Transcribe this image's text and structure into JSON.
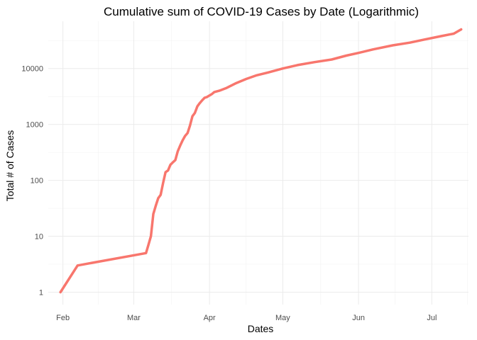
{
  "chart_data": {
    "type": "line",
    "title": "Cumulative sum of COVID-19 Cases by Date (Logarithmic)",
    "xlabel": "Dates",
    "ylabel": "Total # of Cases",
    "y_scale": "log10",
    "ylim": [
      1,
      70000
    ],
    "xlim": [
      "2020-01-26",
      "2020-07-16"
    ],
    "x_ticks": [
      {
        "date": "2020-02-01",
        "label": "Feb"
      },
      {
        "date": "2020-03-01",
        "label": "Mar"
      },
      {
        "date": "2020-04-01",
        "label": "Apr"
      },
      {
        "date": "2020-05-01",
        "label": "May"
      },
      {
        "date": "2020-06-01",
        "label": "Jun"
      },
      {
        "date": "2020-07-01",
        "label": "Jul"
      }
    ],
    "y_ticks": [
      {
        "value": 1,
        "label": "1"
      },
      {
        "value": 10,
        "label": "10"
      },
      {
        "value": 100,
        "label": "100"
      },
      {
        "value": 1000,
        "label": "1000"
      },
      {
        "value": 10000,
        "label": "10000"
      }
    ],
    "grid": true,
    "series_color": "#f8766d",
    "series": [
      {
        "x": [
          "2020-01-31",
          "2020-02-07",
          "2020-03-06",
          "2020-03-07",
          "2020-03-08",
          "2020-03-09",
          "2020-03-10",
          "2020-03-11",
          "2020-03-12",
          "2020-03-13",
          "2020-03-14",
          "2020-03-15",
          "2020-03-16",
          "2020-03-17",
          "2020-03-18",
          "2020-03-19",
          "2020-03-20",
          "2020-03-21",
          "2020-03-22",
          "2020-03-23",
          "2020-03-24",
          "2020-03-25",
          "2020-03-26",
          "2020-03-27",
          "2020-03-28",
          "2020-03-29",
          "2020-03-30",
          "2020-03-31",
          "2020-04-01",
          "2020-04-02",
          "2020-04-03",
          "2020-04-05",
          "2020-04-08",
          "2020-04-12",
          "2020-04-16",
          "2020-04-20",
          "2020-04-25",
          "2020-05-01",
          "2020-05-07",
          "2020-05-14",
          "2020-05-21",
          "2020-05-27",
          "2020-06-01",
          "2020-06-07",
          "2020-06-15",
          "2020-06-22",
          "2020-06-28",
          "2020-07-05",
          "2020-07-10",
          "2020-07-13"
        ],
        "values": [
          1,
          3,
          5,
          7,
          10,
          25,
          35,
          48,
          55,
          90,
          140,
          150,
          190,
          210,
          230,
          330,
          420,
          520,
          620,
          700,
          950,
          1400,
          1600,
          2100,
          2400,
          2700,
          3000,
          3100,
          3300,
          3500,
          3800,
          4000,
          4500,
          5500,
          6500,
          7500,
          8500,
          10000,
          11500,
          13000,
          14500,
          17000,
          19000,
          22000,
          26000,
          29000,
          33000,
          38000,
          42000,
          50000
        ]
      }
    ]
  }
}
